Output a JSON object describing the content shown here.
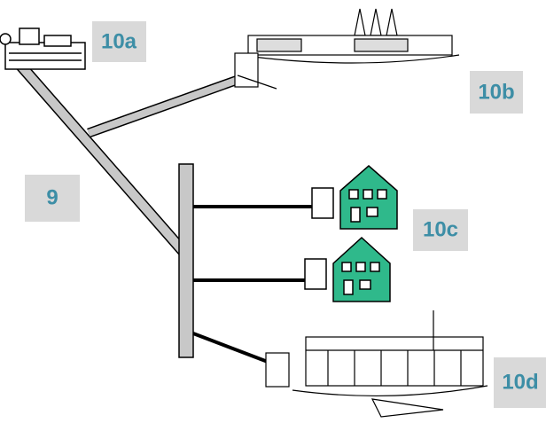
{
  "nodes": [
    {
      "label": "10a"
    },
    {
      "label": "10b"
    },
    {
      "label": "9"
    },
    {
      "label": "10c"
    },
    {
      "label": "10d"
    }
  ]
}
